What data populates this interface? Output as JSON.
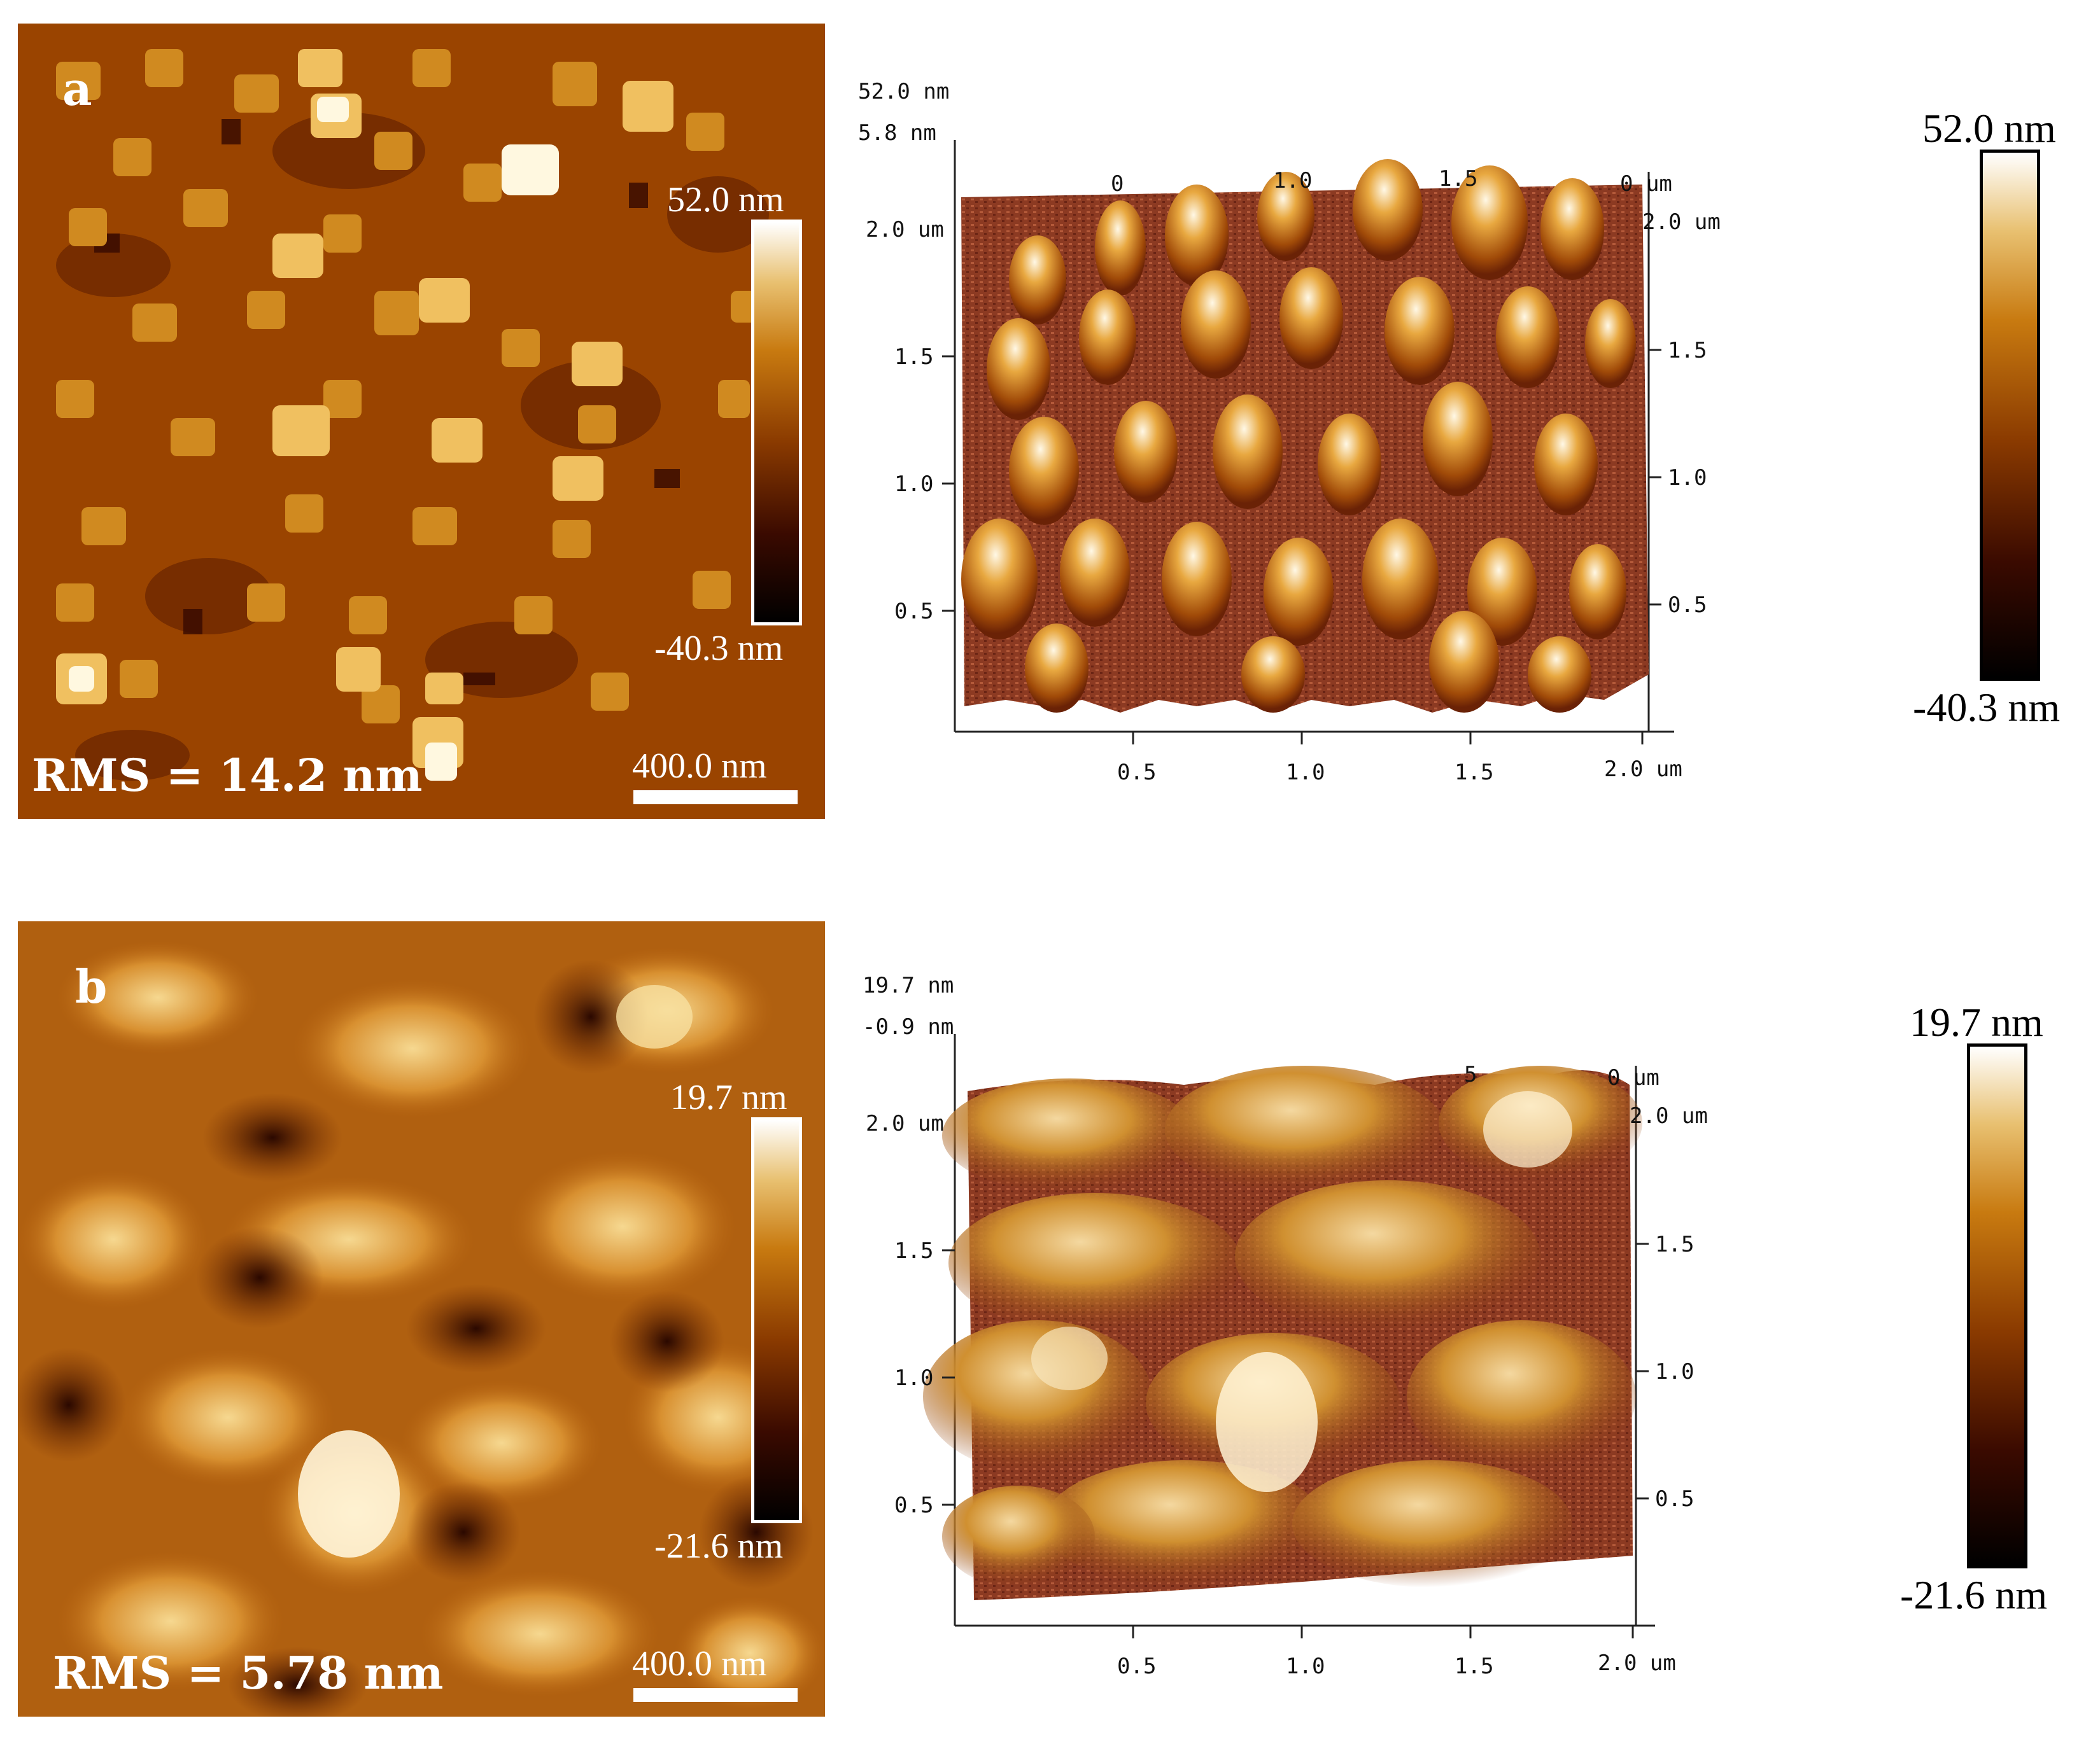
{
  "panel_a": {
    "letter": "a",
    "rms": "RMS = 14.2 nm",
    "colorbar_max": "52.0 nm",
    "colorbar_min": "-40.3 nm",
    "scale_bar": "400.0 nm",
    "view3d": {
      "z_top": "52.0 nm",
      "z_sub": "5.8 nm",
      "left_ticks": [
        "2.0 um",
        "1.5",
        "1.0",
        "0.5"
      ],
      "right_ticks": [
        "2.0 um",
        "1.5",
        "1.0",
        "0.5"
      ],
      "bottom_ticks": [
        "0.5",
        "1.0",
        "1.5",
        "2.0 um"
      ],
      "top_ticks": [
        "0",
        "1.0",
        "1.5",
        "0 um"
      ]
    },
    "right_colorbar_max": "52.0 nm",
    "right_colorbar_min": "-40.3 nm"
  },
  "panel_b": {
    "letter": "b",
    "rms": "RMS = 5.78 nm",
    "colorbar_max": "19.7 nm",
    "colorbar_min": "-21.6 nm",
    "scale_bar": "400.0 nm",
    "view3d": {
      "z_top": "19.7 nm",
      "z_sub": "-0.9 nm",
      "left_ticks": [
        "2.0 um",
        "1.5",
        "1.0",
        "0.5"
      ],
      "right_ticks": [
        "2.0 um",
        "1.5",
        "1.0",
        "0.5"
      ],
      "bottom_ticks": [
        "0.5",
        "1.0",
        "1.5",
        "2.0 um"
      ],
      "top_ticks": [
        "5",
        "0 um"
      ]
    },
    "right_colorbar_max": "19.7 nm",
    "right_colorbar_min": "-21.6 nm"
  },
  "colors": {
    "afm_dark": "#1a0500",
    "afm_mid": "#a04a00",
    "afm_bright": "#f0c060",
    "afm_white": "#fffbe8"
  }
}
